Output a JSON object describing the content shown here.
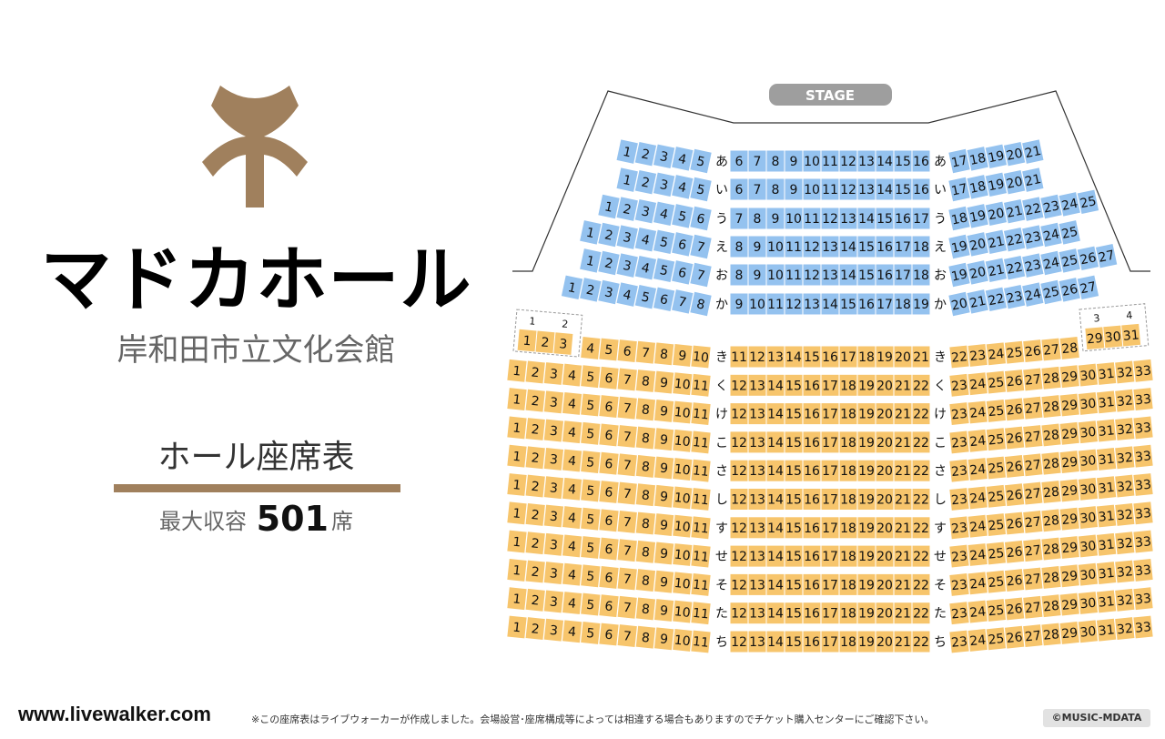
{
  "venue": {
    "name": "マドカホール",
    "subtitle": "岸和田市立文化会館",
    "chart_label": "ホール座席表",
    "capacity_prefix": "最大収容",
    "capacity_value": "501",
    "capacity_suffix": "席",
    "logo_icon": "madoka-logo-icon",
    "accent_color": "#a0805d"
  },
  "stage": {
    "label": "STAGE",
    "color": "#9e9e9e"
  },
  "colors": {
    "upper_seat": "#94c2ef",
    "lower_seat": "#f7c56c",
    "seat_text": "#111111"
  },
  "upper_rows": [
    {
      "label": "あ",
      "left": "1-5",
      "center": "6-16",
      "right": "17-21"
    },
    {
      "label": "い",
      "left": "1-5",
      "center": "6-16",
      "right": "17-21"
    },
    {
      "label": "う",
      "left": "1-6",
      "center": "7-17",
      "right": "18-25"
    },
    {
      "label": "え",
      "left": "1-7",
      "center": "8-18",
      "right": "19-25"
    },
    {
      "label": "お",
      "left": "1-7",
      "center": "8-18",
      "right": "19-27"
    },
    {
      "label": "か",
      "left": "1-8",
      "center": "9-19",
      "right": "20-27"
    }
  ],
  "lower_rows": [
    {
      "label": "き",
      "left": "4-10",
      "center": "11-21",
      "right": "22-28"
    },
    {
      "label": "く",
      "left": "1-11",
      "center": "12-22",
      "right": "23-33"
    },
    {
      "label": "け",
      "left": "1-11",
      "center": "12-22",
      "right": "23-33"
    },
    {
      "label": "こ",
      "left": "1-11",
      "center": "12-22",
      "right": "23-33"
    },
    {
      "label": "さ",
      "left": "1-11",
      "center": "12-22",
      "right": "23-33"
    },
    {
      "label": "し",
      "left": "1-11",
      "center": "12-22",
      "right": "23-33"
    },
    {
      "label": "す",
      "left": "1-11",
      "center": "12-22",
      "right": "23-33"
    },
    {
      "label": "せ",
      "left": "1-11",
      "center": "12-22",
      "right": "23-33"
    },
    {
      "label": "そ",
      "left": "1-11",
      "center": "12-22",
      "right": "23-33"
    },
    {
      "label": "た",
      "left": "1-11",
      "center": "12-22",
      "right": "23-33"
    },
    {
      "label": "ち",
      "left": "1-11",
      "center": "12-22",
      "right": "23-33"
    }
  ],
  "boxes": [
    {
      "labels": [
        "1",
        "2"
      ],
      "seats": [
        "1",
        "2",
        "3"
      ]
    },
    {
      "labels": [
        "3",
        "4"
      ],
      "seats": [
        "29",
        "30",
        "31"
      ]
    }
  ],
  "footer": {
    "url": "www.livewalker.com",
    "note": "※この座席表はライブウォーカーが作成しました。会場設営･座席構成等によっては相違する場合もありますのでチケット購入センターにご確認下さい。",
    "copyright": "©MUSIC-MDATA"
  }
}
